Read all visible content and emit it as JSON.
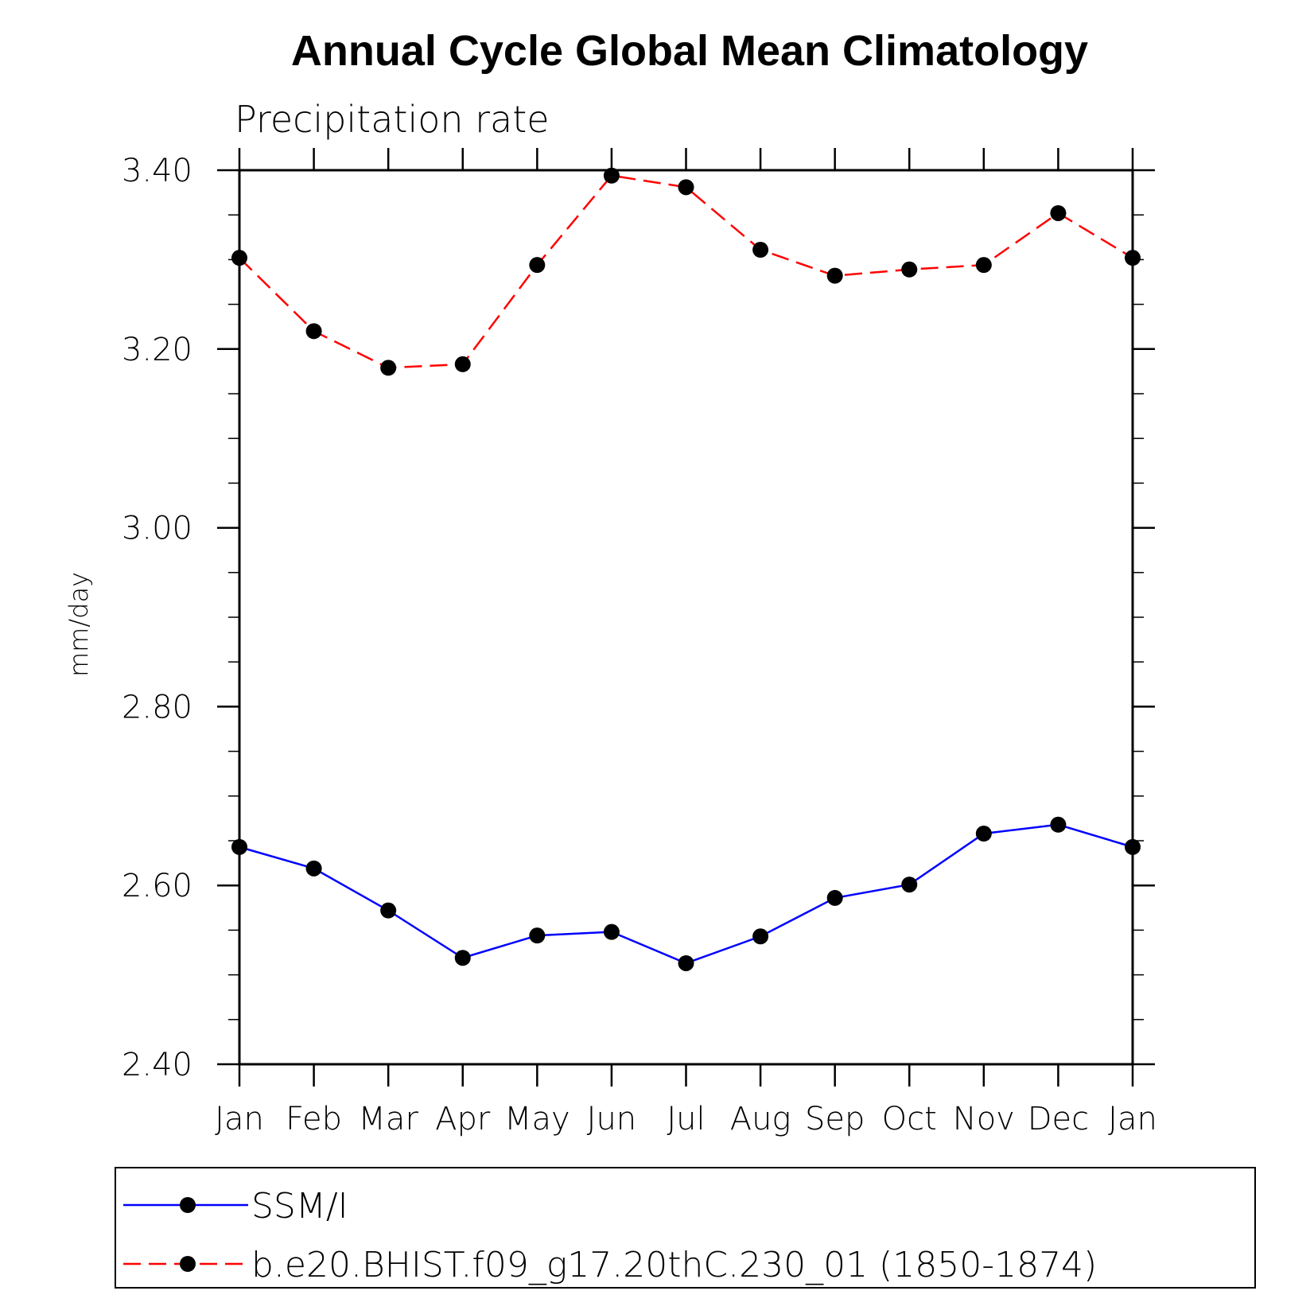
{
  "chart_data": {
    "type": "line",
    "title": "Annual Cycle Global Mean Climatology",
    "subtitle": "Precipitation rate",
    "ylabel": "mm/day",
    "xlabel": "",
    "categories": [
      "Jan",
      "Feb",
      "Mar",
      "Apr",
      "May",
      "Jun",
      "Jul",
      "Aug",
      "Sep",
      "Oct",
      "Nov",
      "Dec",
      "Jan"
    ],
    "ylim": [
      2.4,
      3.4
    ],
    "yticks": [
      "2.40",
      "2.60",
      "2.80",
      "3.00",
      "3.20",
      "3.40"
    ],
    "grid": false,
    "legend_position": "bottom",
    "series": [
      {
        "name": "SSM/I",
        "color": "#0000ff",
        "line_style": "solid",
        "marker": "filled-circle",
        "values": [
          2.643,
          2.619,
          2.572,
          2.519,
          2.544,
          2.548,
          2.513,
          2.543,
          2.586,
          2.601,
          2.658,
          2.668,
          2.643
        ]
      },
      {
        "name": "b.e20.BHIST.f09_g17.20thC.230_01 (1850-1874)",
        "color": "#ff0000",
        "line_style": "dashed",
        "marker": "filled-circle",
        "values": [
          3.302,
          3.22,
          3.179,
          3.183,
          3.294,
          3.394,
          3.381,
          3.311,
          3.282,
          3.289,
          3.294,
          3.352,
          3.302
        ]
      }
    ]
  }
}
